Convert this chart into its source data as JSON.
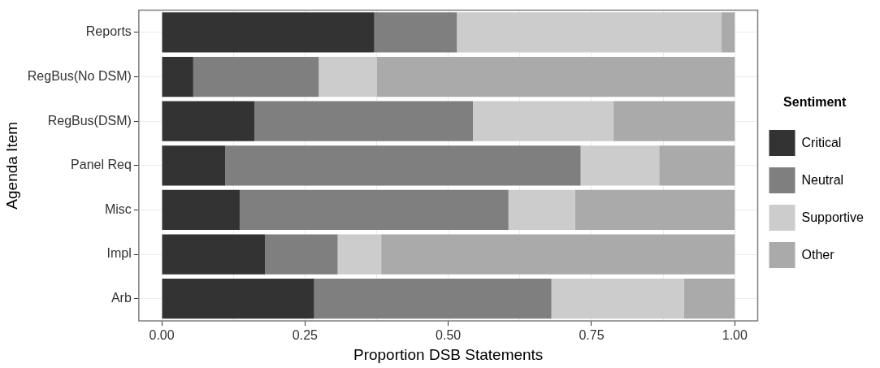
{
  "chart_data": {
    "type": "bar",
    "orientation": "horizontal",
    "stacked": true,
    "xlabel": "Proportion DSB Statements",
    "ylabel": "Agenda Item",
    "legend_title": "Sentiment",
    "legend": "right",
    "grid": true,
    "categories": [
      "Reports",
      "RegBus(No DSM)",
      "RegBus(DSM)",
      "Panel Req",
      "Misc",
      "Impl",
      "Arb"
    ],
    "series": [
      {
        "name": "Critical",
        "color": "#333333",
        "values": [
          0.371,
          0.055,
          0.162,
          0.111,
          0.136,
          0.18,
          0.266
        ]
      },
      {
        "name": "Neutral",
        "color": "#7f7f7f",
        "values": [
          0.144,
          0.219,
          0.381,
          0.62,
          0.469,
          0.127,
          0.414
        ]
      },
      {
        "name": "Supportive",
        "color": "#cccccc",
        "values": [
          0.462,
          0.101,
          0.245,
          0.137,
          0.116,
          0.076,
          0.231
        ]
      },
      {
        "name": "Other",
        "color": "#aaaaaa",
        "values": [
          0.023,
          0.625,
          0.212,
          0.132,
          0.279,
          0.617,
          0.089
        ]
      }
    ],
    "xlim": [
      -0.04,
      1.04
    ],
    "xticks": [
      {
        "value": 0,
        "label": "0.00"
      },
      {
        "value": 0.125,
        "label": null
      },
      {
        "value": 0.25,
        "label": "0.25"
      },
      {
        "value": 0.375,
        "label": null
      },
      {
        "value": 0.5,
        "label": "0.50"
      },
      {
        "value": 0.625,
        "label": null
      },
      {
        "value": 0.75,
        "label": "0.75"
      },
      {
        "value": 0.875,
        "label": null
      },
      {
        "value": 1,
        "label": "1.00"
      }
    ]
  }
}
